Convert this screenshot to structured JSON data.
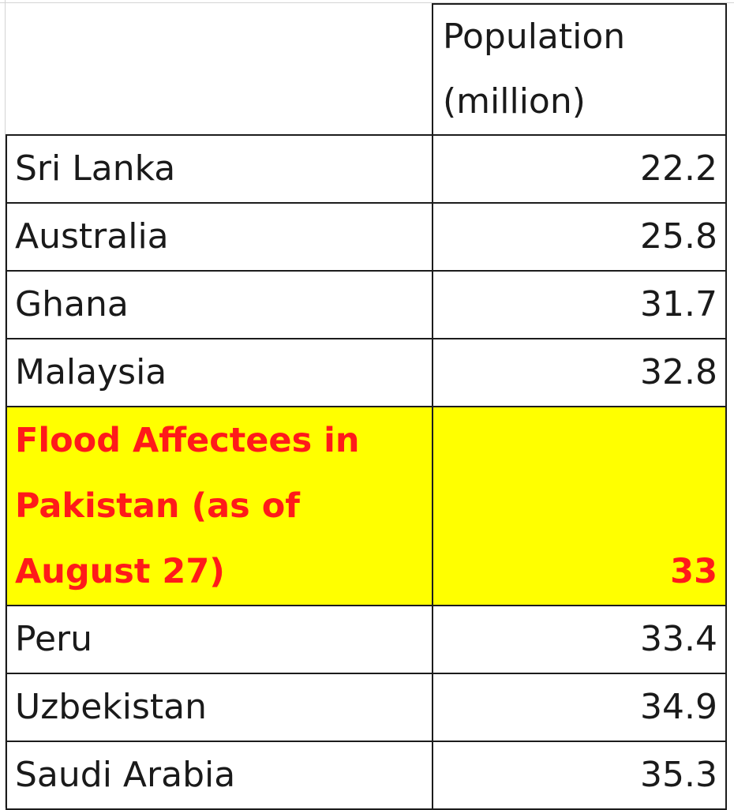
{
  "table": {
    "header": {
      "country": "",
      "population_line1": "Population",
      "population_line2": "(million)"
    },
    "rows": [
      {
        "country": "Sri Lanka",
        "population": "22.2"
      },
      {
        "country": "Australia",
        "population": "25.8"
      },
      {
        "country": "Ghana",
        "population": "31.7"
      },
      {
        "country": "Malaysia",
        "population": "32.8"
      },
      {
        "country": "Flood Affectees in Pakistan (as of August 27)",
        "population": "33",
        "highlighted": true
      },
      {
        "country": "Peru",
        "population": "33.4"
      },
      {
        "country": "Uzbekistan",
        "population": "34.9"
      },
      {
        "country": "Saudi Arabia",
        "population": "35.3"
      }
    ],
    "highlight_colors": {
      "background": "#ffff00",
      "text": "#ff1a1a"
    }
  }
}
